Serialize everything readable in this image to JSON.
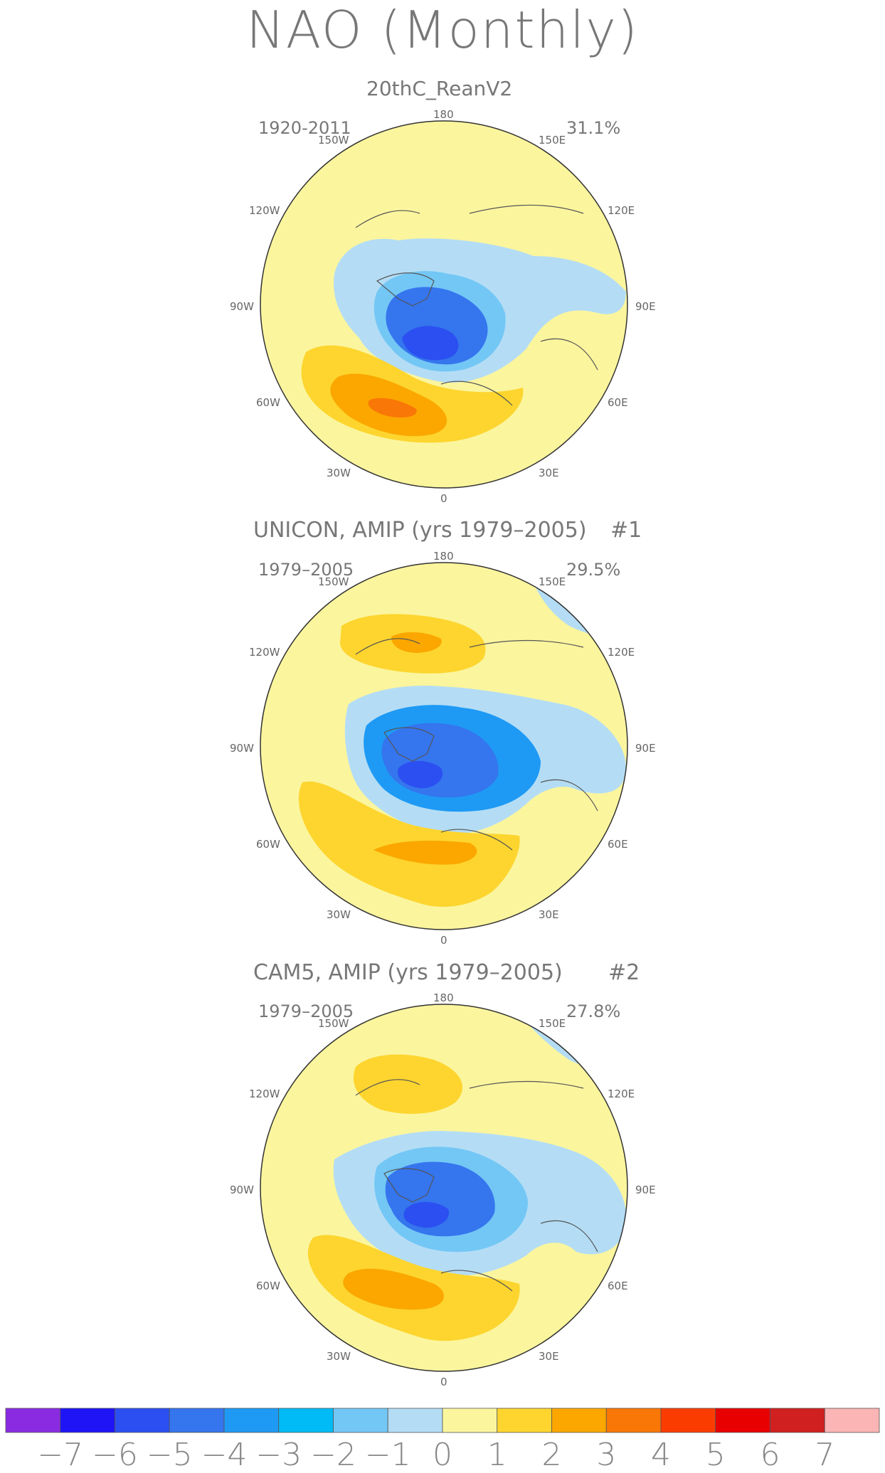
{
  "title": "NAO (Monthly)",
  "colors": {
    "land_outline": "#555555",
    "text": "#777777"
  },
  "panels": [
    {
      "name": "20thC_ReanV2",
      "title": "20thC_ReanV2",
      "tag": "",
      "period": "1920-2011",
      "variance": "31.1%"
    },
    {
      "name": "unicon-amip",
      "title": "UNICON, AMIP (yrs 1979–2005)",
      "tag": "#1",
      "period": "1979–2005",
      "variance": "29.5%"
    },
    {
      "name": "cam5-amip",
      "title": "CAM5, AMIP (yrs 1979–2005)",
      "tag": "#2",
      "period": "1979–2005",
      "variance": "27.8%"
    }
  ],
  "longitude_labels": {
    "top": "180",
    "bottom": "0",
    "w150": "150W",
    "e150": "150E",
    "w120": "120W",
    "e120": "120E",
    "w90": "90W",
    "e90": "90E",
    "w60": "60W",
    "e60": "60E",
    "w30": "30W",
    "e30": "30E"
  },
  "colorbar": {
    "labels": [
      "−7",
      "−6",
      "−5",
      "−4",
      "−3",
      "−2",
      "−1",
      "0",
      "1",
      "2",
      "3",
      "4",
      "5",
      "6",
      "7"
    ],
    "colors": [
      "#8a2be2",
      "#1e14f5",
      "#2b4ff0",
      "#3575ee",
      "#1e9af5",
      "#00bbf5",
      "#73c7f5",
      "#b4ddf5",
      "#fbf59e",
      "#fdd52e",
      "#fba700",
      "#f97707",
      "#fb3c00",
      "#e80000",
      "#d02020",
      "#fbb5b5"
    ]
  }
}
